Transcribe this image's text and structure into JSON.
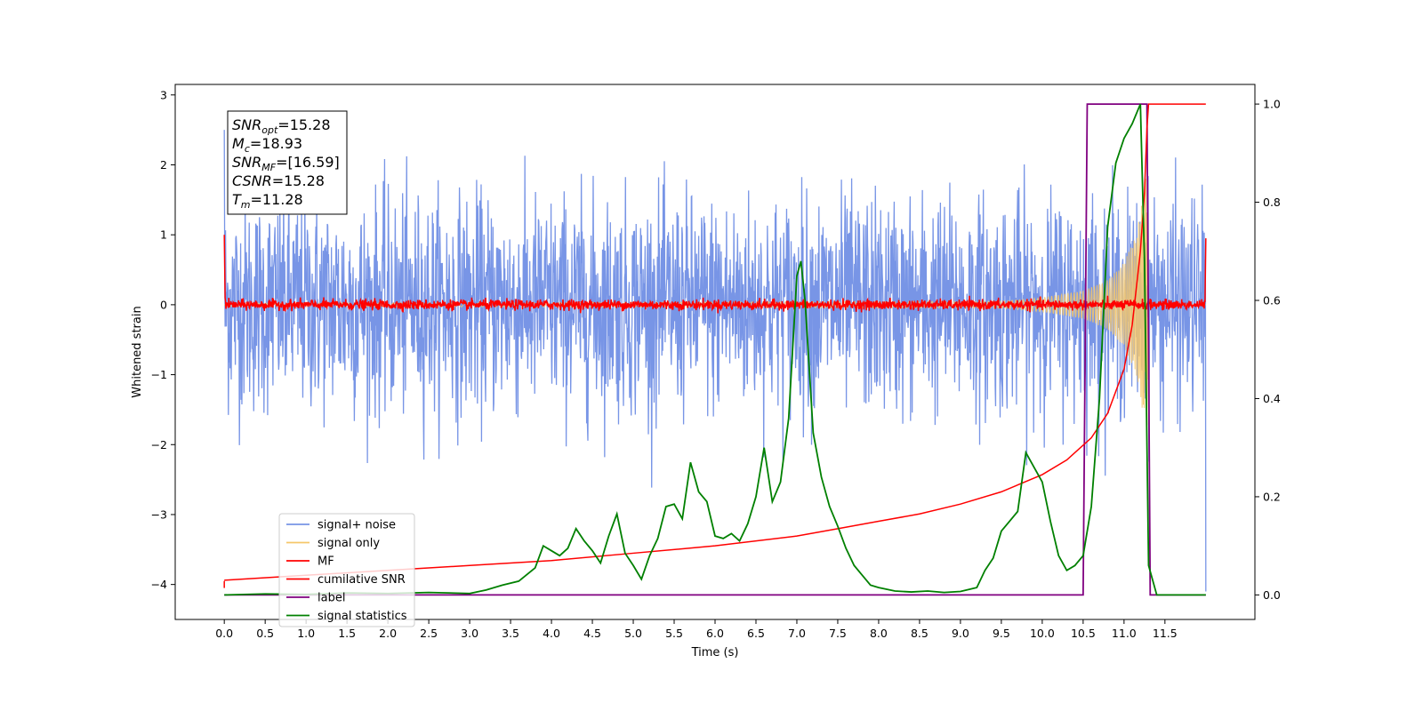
{
  "chart_data": {
    "type": "line",
    "xlabel": "Time (s)",
    "ylabel": "Whitened strain",
    "xlim": [
      -0.6,
      12.6
    ],
    "ylim": [
      -4.5,
      3.15
    ],
    "y2lim": [
      -0.05,
      1.04
    ],
    "x_ticks": [
      "0.0",
      "0.5",
      "1.0",
      "1.5",
      "2.0",
      "2.5",
      "3.0",
      "3.5",
      "4.0",
      "4.5",
      "5.0",
      "5.5",
      "6.0",
      "6.5",
      "7.0",
      "7.5",
      "8.0",
      "8.5",
      "9.0",
      "9.5",
      "10.0",
      "10.5",
      "11.0",
      "11.5"
    ],
    "y_ticks": [
      "3",
      "2",
      "1",
      "0",
      "−1",
      "−2",
      "−3",
      "−4"
    ],
    "y2_ticks": [
      "1.0",
      "0.8",
      "0.6",
      "0.4",
      "0.2",
      "0.0"
    ],
    "grid": false,
    "legend_placement": "lower-left",
    "annotation": {
      "lines": [
        {
          "sym": "SNR",
          "sub": "opt",
          "value": "=15.28"
        },
        {
          "sym": "M",
          "sub": "c",
          "value": "=18.93"
        },
        {
          "sym": "SNR",
          "sub": "MF",
          "value": "=[16.59]"
        },
        {
          "sym": "CSNR",
          "sub": "",
          "value": "=15.28"
        },
        {
          "sym": "T",
          "sub": "m",
          "value": "=11.28"
        }
      ]
    },
    "series": [
      {
        "name": "signal+ noise",
        "color": "#7895e6",
        "axis": "left",
        "description": "white noise amplitude ~1, peaks up to 2.8, troughs to -2.9",
        "x_range": [
          0.0,
          12.0
        ],
        "noise_amplitude": 0.9,
        "max": 2.8,
        "min": -2.9
      },
      {
        "name": "signal only",
        "color": "#f5c76a",
        "axis": "left",
        "x_range": [
          0.0,
          12.0
        ],
        "envelope": {
          "x": [
            0.0,
            9.5,
            10.0,
            10.5,
            10.8,
            11.0,
            11.15,
            11.28,
            11.3
          ],
          "amp": [
            0.02,
            0.05,
            0.1,
            0.2,
            0.35,
            0.6,
            1.0,
            1.9,
            0.0
          ]
        }
      },
      {
        "name": "MF",
        "color": "#ff0000",
        "axis": "left",
        "x_range": [
          0.0,
          12.0
        ],
        "noise_amplitude": 0.06,
        "start_value": 1.0,
        "end_value": 0.95
      },
      {
        "name": "cumilative SNR",
        "color": "#ff0000",
        "axis": "right",
        "x": [
          0.0,
          1.0,
          2.0,
          3.0,
          4.0,
          5.0,
          6.0,
          7.0,
          7.5,
          8.0,
          8.5,
          9.0,
          9.5,
          10.0,
          10.3,
          10.6,
          10.8,
          11.0,
          11.1,
          11.2,
          11.25,
          11.28,
          11.3,
          12.0
        ],
        "y": [
          0.03,
          0.04,
          0.05,
          0.06,
          0.07,
          0.085,
          0.1,
          0.12,
          0.135,
          0.15,
          0.165,
          0.185,
          0.21,
          0.245,
          0.275,
          0.32,
          0.37,
          0.46,
          0.55,
          0.7,
          0.82,
          0.95,
          1.0,
          1.0
        ]
      },
      {
        "name": "label",
        "color": "#800080",
        "axis": "right",
        "x": [
          0.0,
          10.5,
          10.55,
          11.28,
          11.32,
          12.0
        ],
        "y": [
          0.0,
          0.0,
          1.0,
          1.0,
          0.0,
          0.0
        ]
      },
      {
        "name": "signal statistics",
        "color": "#008000",
        "axis": "right",
        "x": [
          0.0,
          0.5,
          1.0,
          1.5,
          2.0,
          2.5,
          3.0,
          3.2,
          3.4,
          3.6,
          3.8,
          3.9,
          4.0,
          4.1,
          4.2,
          4.3,
          4.4,
          4.5,
          4.6,
          4.7,
          4.8,
          4.9,
          5.0,
          5.1,
          5.2,
          5.3,
          5.4,
          5.5,
          5.6,
          5.7,
          5.8,
          5.9,
          6.0,
          6.1,
          6.2,
          6.3,
          6.4,
          6.5,
          6.6,
          6.7,
          6.8,
          6.9,
          7.0,
          7.05,
          7.1,
          7.2,
          7.3,
          7.4,
          7.5,
          7.6,
          7.7,
          7.8,
          7.9,
          8.0,
          8.2,
          8.4,
          8.6,
          8.8,
          9.0,
          9.2,
          9.3,
          9.4,
          9.5,
          9.6,
          9.7,
          9.8,
          9.9,
          10.0,
          10.1,
          10.2,
          10.3,
          10.4,
          10.5,
          10.6,
          10.7,
          10.8,
          10.9,
          11.0,
          11.1,
          11.2,
          11.25,
          11.3,
          11.4,
          11.5,
          12.0
        ],
        "y": [
          0.0,
          0.002,
          0.001,
          0.004,
          0.003,
          0.005,
          0.003,
          0.01,
          0.02,
          0.028,
          0.055,
          0.1,
          0.09,
          0.08,
          0.095,
          0.135,
          0.11,
          0.09,
          0.065,
          0.12,
          0.165,
          0.085,
          0.06,
          0.032,
          0.08,
          0.115,
          0.18,
          0.185,
          0.155,
          0.27,
          0.21,
          0.19,
          0.12,
          0.115,
          0.125,
          0.11,
          0.145,
          0.2,
          0.3,
          0.19,
          0.23,
          0.36,
          0.65,
          0.68,
          0.6,
          0.33,
          0.24,
          0.18,
          0.14,
          0.095,
          0.06,
          0.04,
          0.02,
          0.015,
          0.008,
          0.006,
          0.008,
          0.005,
          0.007,
          0.015,
          0.05,
          0.075,
          0.13,
          0.15,
          0.17,
          0.29,
          0.26,
          0.23,
          0.15,
          0.08,
          0.05,
          0.06,
          0.08,
          0.18,
          0.4,
          0.75,
          0.88,
          0.93,
          0.96,
          1.0,
          0.68,
          0.06,
          0.0,
          0.0,
          0.0
        ]
      }
    ]
  }
}
